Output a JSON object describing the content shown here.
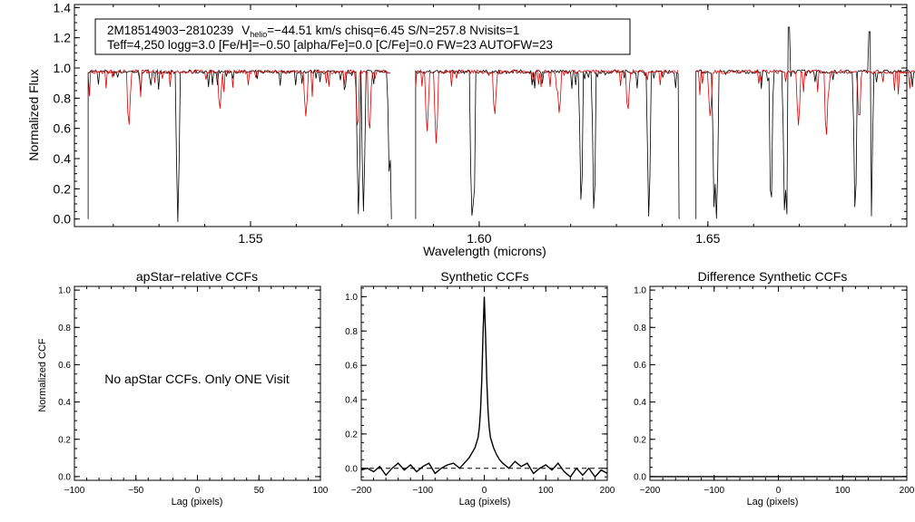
{
  "chart_data": [
    {
      "id": "spectrum",
      "type": "line",
      "title": "",
      "xlabel": "Wavelength (microns)",
      "ylabel": "Normalized Flux",
      "xlim": [
        1.5115,
        1.6935
      ],
      "ylim": [
        -0.05,
        1.42
      ],
      "xticks": [
        1.55,
        1.6,
        1.65
      ],
      "xtick_labels": [
        "1.55",
        "1.60",
        "1.65"
      ],
      "yticks": [
        0.0,
        0.2,
        0.4,
        0.6,
        0.8,
        1.0,
        1.2,
        1.4
      ],
      "ytick_labels": [
        "0.0",
        "0.2",
        "0.4",
        "0.6",
        "0.8",
        "1.0",
        "1.2",
        "1.4"
      ],
      "annotation": {
        "star_id": "2M18514903−2810239",
        "v_label": "V",
        "v_sub": "helio",
        "v_value": "=−44.51 km/s  chisq=6.45  S/N=257.8  Nvisits=1",
        "line2": "Teff=4,250 logg=3.0 [Fe/H]=−0.50 [alpha/Fe]=0.0 [C/Fe]=0.0 FW=23 AUTOFW=23"
      },
      "detectors": [
        [
          1.5145,
          1.5808
        ],
        [
          1.5861,
          1.6437
        ],
        [
          1.6474,
          1.696
        ]
      ],
      "series": [
        {
          "name": "observed",
          "color": "#000000",
          "continuum": 0.975,
          "features": [
            [
              1.5341,
              -0.02
            ],
            [
              1.5736,
              0.03
            ],
            [
              1.5747,
              0.05
            ],
            [
              1.5804,
              0.28
            ],
            [
              1.5984,
              0.02
            ],
            [
              1.5988,
              0.06
            ],
            [
              1.6223,
              0.1
            ],
            [
              1.6251,
              0.04
            ],
            [
              1.6371,
              0.01
            ],
            [
              1.6514,
              0.05
            ],
            [
              1.6519,
              0.0
            ],
            [
              1.6638,
              0.08
            ],
            [
              1.6668,
              0.03
            ],
            [
              1.6672,
              0.0
            ],
            [
              1.6822,
              0.05
            ],
            [
              1.6857,
              0.0
            ]
          ],
          "spikes": [
            [
              1.6676,
              1.27
            ],
            [
              1.6853,
              1.24
            ]
          ]
        },
        {
          "name": "synthetic",
          "color": "#dd0000",
          "continuum": 0.975,
          "features": [
            [
              1.5234,
              0.62
            ],
            [
              1.5433,
              0.73
            ],
            [
              1.5621,
              0.68
            ],
            [
              1.5734,
              0.6
            ],
            [
              1.576,
              0.58
            ],
            [
              1.5886,
              0.58
            ],
            [
              1.5906,
              0.5
            ],
            [
              1.6034,
              0.69
            ],
            [
              1.6175,
              0.7
            ],
            [
              1.6325,
              0.72
            ],
            [
              1.6505,
              0.68
            ],
            [
              1.6698,
              0.62
            ],
            [
              1.6759,
              0.55
            ],
            [
              1.6831,
              0.66
            ]
          ]
        }
      ]
    },
    {
      "id": "apstar-ccf",
      "type": "line",
      "title": "apStar−relative CCFs",
      "xlabel": "Lag (pixels)",
      "ylabel": "Normalized CCF",
      "xlim": [
        -100,
        100
      ],
      "ylim": [
        -0.02,
        1.02
      ],
      "xticks": [
        -100,
        -50,
        0,
        50,
        100
      ],
      "xtick_labels": [
        "−100",
        "−50",
        "0",
        "50",
        "100"
      ],
      "yticks": [
        0.0,
        0.2,
        0.4,
        0.6,
        0.8,
        1.0
      ],
      "ytick_labels": [
        "0.0",
        "0.2",
        "0.4",
        "0.6",
        "0.8",
        "1.0"
      ],
      "message": "No apStar CCFs.  Only ONE Visit",
      "series": []
    },
    {
      "id": "synthetic-ccf",
      "type": "line",
      "title": "Synthetic CCFs",
      "xlabel": "Lag (pixels)",
      "ylabel": "",
      "xlim": [
        -200,
        200
      ],
      "ylim": [
        -0.07,
        1.06
      ],
      "xticks": [
        -200,
        -100,
        0,
        100,
        200
      ],
      "xtick_labels": [
        "−200",
        "−100",
        "0",
        "100",
        "200"
      ],
      "yticks": [
        0.0,
        0.2,
        0.4,
        0.6,
        0.8,
        1.0
      ],
      "ytick_labels": [
        "0.0",
        "0.2",
        "0.4",
        "0.6",
        "0.8",
        "1.0"
      ],
      "zero_line": true,
      "series": [
        {
          "name": "synthetic-ccf",
          "color": "#000000",
          "x": [
            -200,
            -190,
            -180,
            -170,
            -160,
            -150,
            -140,
            -130,
            -120,
            -110,
            -100,
            -90,
            -80,
            -70,
            -60,
            -50,
            -40,
            -30,
            -25,
            -20,
            -15,
            -10,
            -8,
            -6,
            -4,
            -2,
            0,
            2,
            4,
            6,
            8,
            10,
            15,
            20,
            25,
            30,
            40,
            50,
            60,
            70,
            80,
            90,
            100,
            110,
            120,
            130,
            140,
            150,
            160,
            170,
            180,
            190,
            200
          ],
          "y": [
            -0.01,
            0.0,
            -0.02,
            0.01,
            -0.04,
            0.0,
            0.03,
            -0.01,
            0.02,
            -0.02,
            0.01,
            0.03,
            -0.03,
            0.0,
            0.02,
            0.03,
            0.0,
            0.04,
            0.06,
            0.09,
            0.12,
            0.18,
            0.24,
            0.34,
            0.52,
            0.78,
            1.0,
            0.78,
            0.52,
            0.34,
            0.24,
            0.18,
            0.12,
            0.08,
            0.05,
            0.03,
            0.0,
            0.04,
            0.01,
            0.03,
            -0.03,
            0.0,
            0.02,
            -0.01,
            0.03,
            -0.02,
            -0.05,
            0.0,
            -0.04,
            0.0,
            -0.05,
            -0.01,
            -0.03
          ]
        }
      ]
    },
    {
      "id": "difference-ccf",
      "type": "line",
      "title": "Difference Synthetic CCFs",
      "xlabel": "Lag (pixels)",
      "ylabel": "",
      "xlim": [
        -200,
        200
      ],
      "ylim": [
        -0.02,
        1.02
      ],
      "xticks": [
        -200,
        -100,
        0,
        100,
        200
      ],
      "xtick_labels": [
        "−200",
        "−100",
        "0",
        "100",
        "200"
      ],
      "yticks": [
        0.0,
        0.2,
        0.4,
        0.6,
        0.8,
        1.0
      ],
      "ytick_labels": [
        "0.0",
        "0.2",
        "0.4",
        "0.6",
        "0.8",
        "1.0"
      ],
      "series": [
        {
          "name": "difference-ccf",
          "color": "#000000",
          "x": [
            -200,
            200
          ],
          "y": [
            0.0,
            0.0
          ]
        }
      ]
    }
  ]
}
